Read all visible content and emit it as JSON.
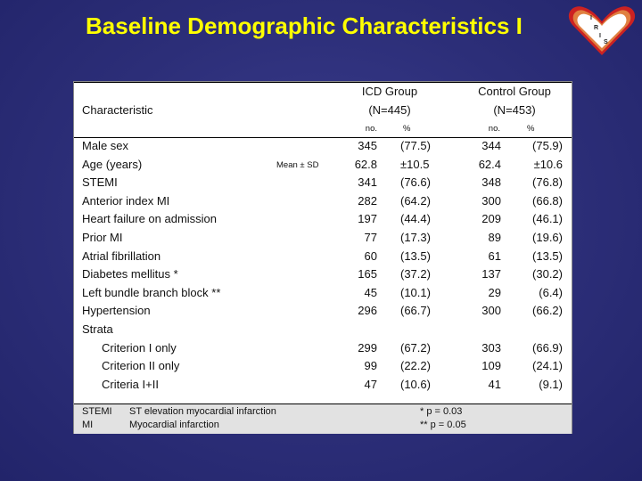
{
  "title": "Baseline Demographic Characteristics I",
  "logo": {
    "letters": [
      "I",
      "R",
      "I",
      "S"
    ],
    "colors": {
      "outer": "#cc2222",
      "middle": "#e08040",
      "inner": "#ffffff"
    }
  },
  "table": {
    "characteristic_header": "Characteristic",
    "icd_group": {
      "name": "ICD Group",
      "n": "(N=445)"
    },
    "control_group": {
      "name": "Control Group",
      "n": "(N=453)"
    },
    "subheaders": {
      "no": "no.",
      "pct": "%"
    },
    "rows": [
      {
        "label": "Male sex",
        "note": "",
        "icd_no": "345",
        "icd_pct": "(77.5)",
        "ctl_no": "344",
        "ctl_pct": "(75.9)"
      },
      {
        "label": "Age (years)",
        "note": "Mean ± SD",
        "icd_no": "62.8",
        "icd_pct": "±10.5",
        "ctl_no": "62.4",
        "ctl_pct": "±10.6"
      },
      {
        "label": "STEMI",
        "note": "",
        "icd_no": "341",
        "icd_pct": "(76.6)",
        "ctl_no": "348",
        "ctl_pct": "(76.8)"
      },
      {
        "label": "Anterior index MI",
        "note": "",
        "icd_no": "282",
        "icd_pct": "(64.2)",
        "ctl_no": "300",
        "ctl_pct": "(66.8)"
      },
      {
        "label": "Heart failure on admission",
        "note": "",
        "icd_no": "197",
        "icd_pct": "(44.4)",
        "ctl_no": "209",
        "ctl_pct": "(46.1)"
      },
      {
        "label": "Prior MI",
        "note": "",
        "icd_no": "77",
        "icd_pct": "(17.3)",
        "ctl_no": "89",
        "ctl_pct": "(19.6)"
      },
      {
        "label": "Atrial fibrillation",
        "note": "",
        "icd_no": "60",
        "icd_pct": "(13.5)",
        "ctl_no": "61",
        "ctl_pct": "(13.5)"
      },
      {
        "label": "Diabetes mellitus *",
        "note": "",
        "icd_no": "165",
        "icd_pct": "(37.2)",
        "ctl_no": "137",
        "ctl_pct": "(30.2)"
      },
      {
        "label": "Left bundle branch block **",
        "note": "",
        "icd_no": "45",
        "icd_pct": "(10.1)",
        "ctl_no": "29",
        "ctl_pct": "(6.4)"
      },
      {
        "label": "Hypertension",
        "note": "",
        "icd_no": "296",
        "icd_pct": "(66.7)",
        "ctl_no": "300",
        "ctl_pct": "(66.2)"
      },
      {
        "label": "Strata",
        "note": "",
        "icd_no": "",
        "icd_pct": "",
        "ctl_no": "",
        "ctl_pct": ""
      },
      {
        "label": "Criterion I only",
        "note": "",
        "icd_no": "299",
        "icd_pct": "(67.2)",
        "ctl_no": "303",
        "ctl_pct": "(66.9)"
      },
      {
        "label": "Criterion II only",
        "note": "",
        "icd_no": "99",
        "icd_pct": "(22.2)",
        "ctl_no": "109",
        "ctl_pct": "(24.1)"
      },
      {
        "label": "Criteria I+II",
        "note": "",
        "icd_no": "47",
        "icd_pct": "(10.6)",
        "ctl_no": "41",
        "ctl_pct": "(9.1)"
      }
    ]
  },
  "footer": {
    "abbreviations": [
      {
        "abbr": "STEMI",
        "definition": "ST elevation myocardial infarction"
      },
      {
        "abbr": "MI",
        "definition": "Myocardial infarction"
      }
    ],
    "pvalues": [
      "*  p = 0.03",
      "** p = 0.05"
    ]
  }
}
